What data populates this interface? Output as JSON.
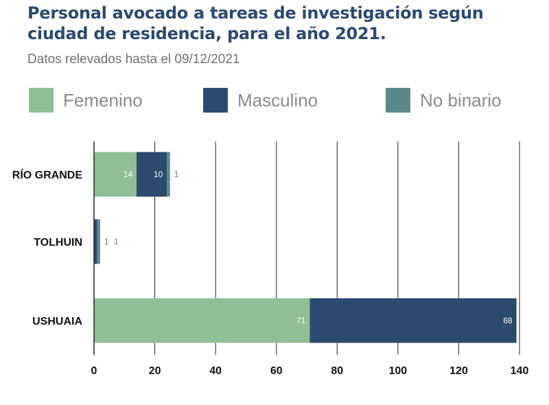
{
  "header": {
    "title": "Personal avocado a tareas de investigación según ciudad de residencia, para el año 2021.",
    "subtitle": "Datos relevados hasta el 09/12/2021"
  },
  "colors": {
    "femenino": "#8fbf96",
    "masculino": "#2c4a6e",
    "no_binario": "#5a8a87",
    "grid": "#222222",
    "label_on_bar": "#ffffff",
    "label_outside": "#5a7a9a"
  },
  "chart_data": {
    "type": "bar",
    "orientation": "horizontal",
    "stacked": true,
    "title": "Personal avocado a tareas de investigación según ciudad de residencia, para el año 2021.",
    "subtitle": "Datos relevados hasta el 09/12/2021",
    "categories": [
      "RÍO GRANDE",
      "TOLHUIN",
      "USHUAIA"
    ],
    "series": [
      {
        "name": "Femenino",
        "values": [
          14,
          0,
          71
        ]
      },
      {
        "name": "Masculino",
        "values": [
          10,
          1,
          68
        ]
      },
      {
        "name": "No binario",
        "values": [
          1,
          1,
          0
        ]
      }
    ],
    "xlim": [
      0,
      140
    ],
    "xticks": [
      0,
      20,
      40,
      60,
      80,
      100,
      120,
      140
    ],
    "grid": true,
    "legend_position": "top"
  }
}
